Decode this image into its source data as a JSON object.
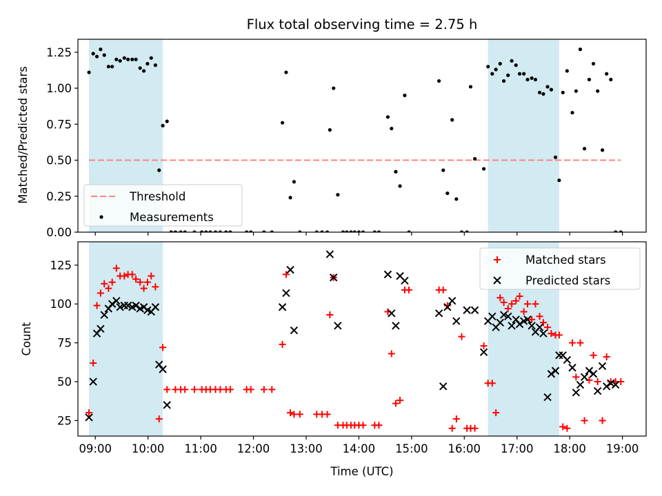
{
  "chart_data": [
    {
      "type": "scatter",
      "title": "Flux total observing time = 2.75 h",
      "xlabel": "",
      "ylabel": "Matched/Predicted stars",
      "xlim": [
        8.67,
        19.45
      ],
      "ylim": [
        0,
        1.34
      ],
      "yticks": [
        0,
        0.25,
        0.5,
        0.75,
        1.0,
        1.25
      ],
      "ytick_labels": [
        "0.00",
        "0.25",
        "0.50",
        "0.75",
        "1.00",
        "1.25"
      ],
      "shaded_regions": [
        [
          8.88,
          10.28
        ],
        [
          16.45,
          17.8
        ]
      ],
      "shade_color": "#add8e6",
      "legend_position": "lower-left",
      "series": [
        {
          "name": "Threshold",
          "kind": "line",
          "color": "#ff8080",
          "x": [
            8.88,
            18.97
          ],
          "y": [
            0.5,
            0.5
          ]
        },
        {
          "name": "Measurements",
          "kind": "points",
          "color": "#000000",
          "x": [
            8.88,
            8.96,
            9.03,
            9.1,
            9.17,
            9.25,
            9.32,
            9.4,
            9.47,
            9.55,
            9.62,
            9.7,
            9.77,
            9.85,
            9.92,
            9.99,
            10.06,
            10.14,
            10.21,
            10.28,
            10.36,
            10.44,
            10.52,
            10.62,
            10.7,
            10.88,
            11.02,
            11.1,
            11.18,
            11.28,
            11.37,
            11.48,
            11.56,
            11.87,
            11.95,
            12.2,
            12.35,
            12.55,
            12.62,
            12.7,
            12.77,
            12.88,
            13.2,
            13.3,
            13.4,
            13.45,
            13.52,
            13.6,
            13.7,
            13.77,
            13.85,
            13.92,
            14.0,
            14.08,
            14.3,
            14.38,
            14.55,
            14.62,
            14.7,
            14.78,
            14.87,
            14.95,
            15.52,
            15.6,
            15.68,
            15.77,
            15.85,
            15.95,
            16.05,
            16.12,
            16.2,
            16.37,
            16.45,
            16.53,
            16.6,
            16.68,
            16.75,
            16.83,
            16.9,
            16.98,
            17.05,
            17.13,
            17.2,
            17.28,
            17.35,
            17.43,
            17.5,
            17.58,
            17.65,
            17.73,
            17.8,
            17.87,
            17.95,
            18.05,
            18.12,
            18.2,
            18.28,
            18.37,
            18.45,
            18.53,
            18.62,
            18.7,
            18.78,
            18.87,
            18.97
          ],
          "y": [
            1.11,
            1.24,
            1.22,
            1.27,
            1.23,
            1.15,
            1.15,
            1.2,
            1.19,
            1.21,
            1.2,
            1.2,
            1.2,
            1.14,
            1.12,
            1.17,
            1.21,
            1.16,
            0.43,
            0.74,
            0.77,
            0.0,
            0.0,
            0.0,
            0.0,
            0.0,
            0.0,
            0.0,
            0.0,
            0.0,
            0.0,
            0.0,
            0.0,
            0.0,
            0.0,
            0.0,
            0.0,
            0.76,
            1.11,
            0.24,
            0.35,
            0.0,
            0.0,
            0.0,
            0.0,
            0.71,
            1.0,
            0.26,
            0.0,
            0.0,
            0.0,
            0.0,
            0.0,
            0.0,
            0.0,
            0.0,
            0.8,
            0.72,
            0.42,
            0.32,
            0.95,
            0.0,
            1.05,
            0.43,
            0.27,
            0.78,
            0.23,
            0.0,
            0.0,
            1.01,
            0.51,
            0.44,
            1.15,
            1.1,
            1.13,
            1.17,
            1.05,
            1.09,
            1.19,
            1.16,
            1.1,
            1.1,
            1.06,
            1.07,
            1.06,
            0.97,
            0.96,
            1.01,
            0.99,
            0.52,
            0.36,
            0.97,
            1.12,
            0.83,
            0.98,
            1.27,
            0.58,
            1.06,
            1.17,
            0.98,
            0.57,
            1.1,
            1.06,
            0.0,
            0.0
          ]
        }
      ]
    },
    {
      "type": "scatter",
      "title": "",
      "xlabel": "Time (UTC)",
      "ylabel": "Count",
      "xlim": [
        8.67,
        19.45
      ],
      "ylim": [
        15,
        140
      ],
      "yticks": [
        25,
        50,
        75,
        100,
        125
      ],
      "ytick_labels": [
        "25",
        "50",
        "75",
        "100",
        "125"
      ],
      "xticks": [
        9,
        10,
        11,
        12,
        13,
        14,
        15,
        16,
        17,
        18,
        19
      ],
      "xtick_labels": [
        "09:00",
        "10:00",
        "11:00",
        "12:00",
        "13:00",
        "14:00",
        "15:00",
        "16:00",
        "17:00",
        "18:00",
        "19:00"
      ],
      "shaded_regions": [
        [
          8.88,
          10.28
        ],
        [
          16.45,
          17.8
        ]
      ],
      "shade_color": "#add8e6",
      "legend_position": "upper-right",
      "series": [
        {
          "name": "Matched stars",
          "marker": "plus",
          "color": "#ff0000",
          "x": [
            8.88,
            8.96,
            9.03,
            9.1,
            9.17,
            9.25,
            9.32,
            9.4,
            9.47,
            9.55,
            9.62,
            9.7,
            9.77,
            9.85,
            9.92,
            9.99,
            10.06,
            10.14,
            10.21,
            10.28,
            10.36,
            10.52,
            10.62,
            10.7,
            10.88,
            11.02,
            11.1,
            11.18,
            11.28,
            11.37,
            11.48,
            11.56,
            11.87,
            11.95,
            12.2,
            12.35,
            12.55,
            12.62,
            12.7,
            12.77,
            12.88,
            13.2,
            13.3,
            13.4,
            13.45,
            13.52,
            13.6,
            13.7,
            13.77,
            13.85,
            13.92,
            14.0,
            14.08,
            14.3,
            14.38,
            14.55,
            14.62,
            14.7,
            14.78,
            14.87,
            14.95,
            15.52,
            15.6,
            15.68,
            15.77,
            15.85,
            15.95,
            16.05,
            16.12,
            16.2,
            16.37,
            16.45,
            16.53,
            16.6,
            16.68,
            16.75,
            16.83,
            16.9,
            16.98,
            17.05,
            17.13,
            17.2,
            17.28,
            17.35,
            17.43,
            17.5,
            17.58,
            17.65,
            17.73,
            17.8,
            17.87,
            17.95,
            18.05,
            18.12,
            18.2,
            18.28,
            18.37,
            18.45,
            18.53,
            18.62,
            18.7,
            18.78,
            18.87,
            18.97
          ],
          "y": [
            30,
            62,
            99,
            107,
            113,
            110,
            114,
            123,
            118,
            118,
            119,
            119,
            116,
            114,
            110,
            114,
            118,
            111,
            26,
            72,
            45,
            45,
            45,
            45,
            45,
            45,
            45,
            45,
            45,
            45,
            45,
            45,
            45,
            45,
            45,
            45,
            74,
            119,
            30,
            29,
            29,
            29,
            29,
            29,
            93,
            117,
            22,
            22,
            22,
            22,
            22,
            22,
            22,
            22,
            22,
            95,
            68,
            36,
            38,
            109,
            109,
            109,
            109,
            99,
            20,
            26,
            79,
            20,
            20,
            20,
            73,
            49,
            49,
            30,
            104,
            101,
            97,
            100,
            102,
            105,
            95,
            100,
            90,
            100,
            92,
            88,
            85,
            81,
            80,
            80,
            21,
            20,
            75,
            53,
            75,
            25,
            51,
            67,
            50,
            25,
            66,
            50,
            50,
            50
          ]
        },
        {
          "name": "Predicted stars",
          "marker": "cross",
          "color": "#000000",
          "x": [
            8.88,
            8.96,
            9.03,
            9.1,
            9.17,
            9.25,
            9.32,
            9.4,
            9.47,
            9.55,
            9.62,
            9.7,
            9.77,
            9.85,
            9.92,
            9.99,
            10.06,
            10.14,
            10.21,
            10.28,
            10.36,
            12.55,
            12.62,
            12.7,
            12.77,
            13.45,
            13.52,
            13.6,
            14.55,
            14.62,
            14.7,
            14.78,
            14.87,
            15.52,
            15.6,
            15.68,
            15.77,
            15.85,
            16.05,
            16.2,
            16.37,
            16.45,
            16.53,
            16.6,
            16.68,
            16.75,
            16.83,
            16.9,
            16.98,
            17.05,
            17.13,
            17.2,
            17.28,
            17.35,
            17.43,
            17.5,
            17.58,
            17.65,
            17.73,
            17.8,
            17.87,
            17.95,
            18.05,
            18.12,
            18.2,
            18.28,
            18.37,
            18.45,
            18.53,
            18.62,
            18.7,
            18.78,
            18.87
          ],
          "y": [
            27,
            50,
            81,
            84,
            93,
            97,
            100,
            102,
            98,
            99,
            99,
            98,
            99,
            97,
            98,
            96,
            95,
            98,
            61,
            58,
            35,
            98,
            107,
            122,
            83,
            132,
            117,
            86,
            119,
            94,
            86,
            118,
            115,
            94,
            47,
            98,
            102,
            89,
            96,
            96,
            69,
            89,
            92,
            85,
            88,
            93,
            92,
            86,
            90,
            87,
            89,
            90,
            86,
            82,
            85,
            81,
            40,
            55,
            57,
            67,
            67,
            64,
            59,
            43,
            48,
            53,
            57,
            55,
            44,
            60,
            47,
            49,
            48
          ]
        }
      ]
    }
  ]
}
